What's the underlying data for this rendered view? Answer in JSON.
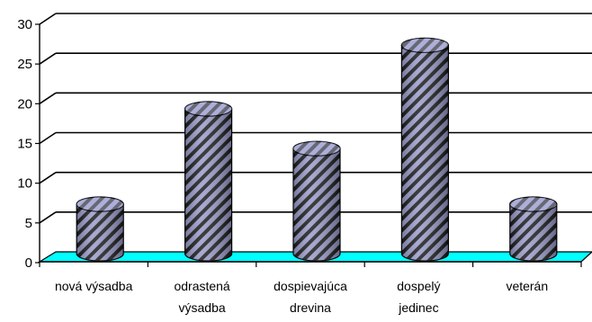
{
  "chart_data": {
    "type": "bar",
    "style": "3d-cylinder",
    "categories": [
      [
        "nová výsadba"
      ],
      [
        "odrastená",
        "výsadba"
      ],
      [
        "dospievajúca",
        "drevina"
      ],
      [
        "dospelý",
        "jedinec"
      ],
      [
        "veterán"
      ]
    ],
    "values": [
      6,
      18,
      13,
      26,
      6
    ],
    "title": "",
    "xlabel": "",
    "ylabel": "",
    "ylim": [
      0,
      30
    ],
    "yticks": [
      0,
      5,
      10,
      15,
      20,
      25,
      30
    ],
    "grid": true,
    "legend": "none",
    "colors": {
      "bar_fill": "#9a9ccc",
      "bar_hatch": "#1a1a1a",
      "bar_top": "#c4c6e6",
      "floor": "#00ffff",
      "grid": "#000000",
      "axis": "#000000"
    }
  }
}
